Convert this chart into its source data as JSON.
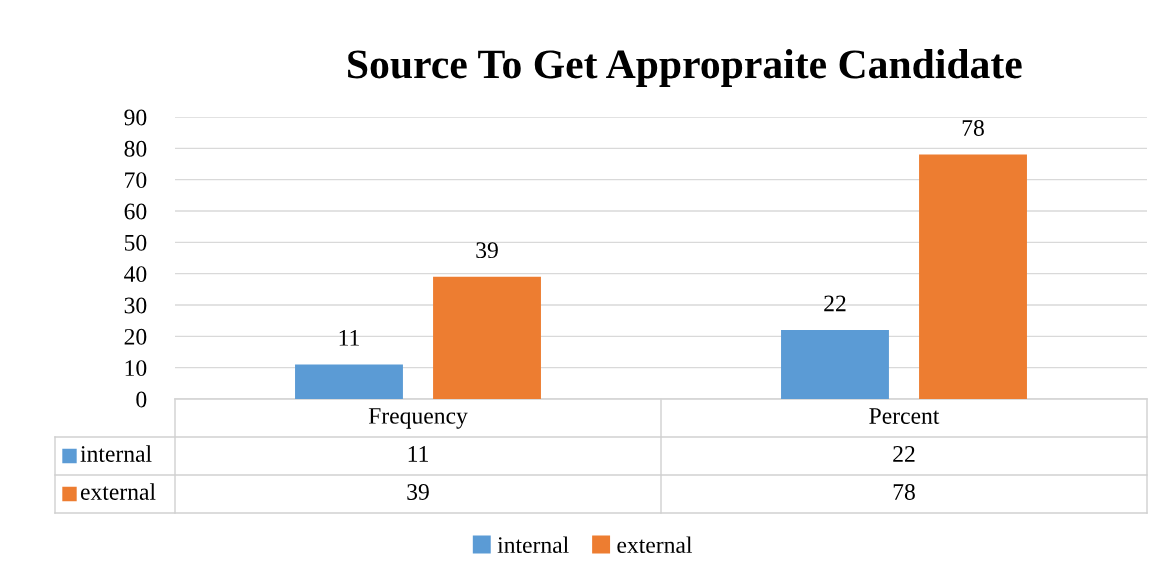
{
  "chart_data": {
    "type": "bar",
    "title": "Source To Get Appropraite Candidate",
    "categories": [
      "Frequency",
      "Percent"
    ],
    "series": [
      {
        "name": "internal",
        "color": "#5b9bd5",
        "values": [
          11,
          22
        ]
      },
      {
        "name": "external",
        "color": "#ed7d31",
        "values": [
          39,
          78
        ]
      }
    ],
    "annotations": [
      "11",
      "22",
      "39",
      "78"
    ],
    "ylim": [
      0,
      90
    ],
    "yticks": [
      0,
      10,
      20,
      30,
      40,
      50,
      60,
      70,
      80,
      90
    ],
    "grid": "y",
    "legend": "bottom",
    "data_labels": true
  }
}
